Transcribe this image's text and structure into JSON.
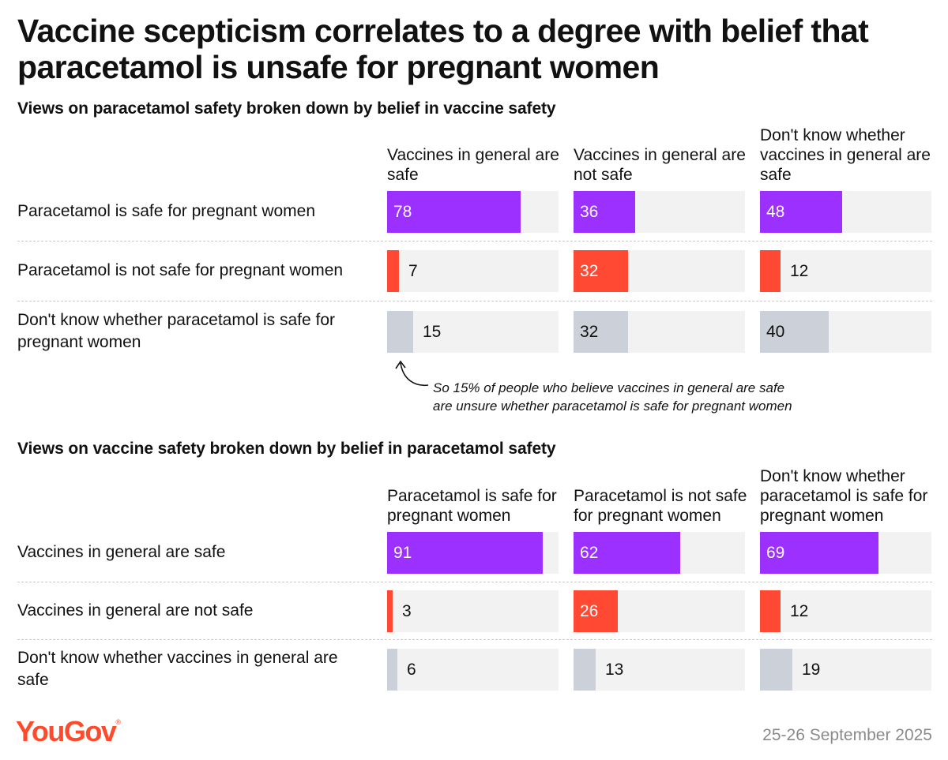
{
  "title": "Vaccine scepticism correlates to a degree with belief that paracetamol is unsafe for pregnant women",
  "colors": {
    "purple": "#9b30ff",
    "red": "#ff4933",
    "grey": "#ccd0d8",
    "track": "#f2f2f2",
    "brand": "#ff4a2b"
  },
  "chart_data": [
    {
      "type": "bar",
      "title": "Views on paracetamol safety broken down by belief in vaccine safety",
      "columns": [
        "Vaccines in general are safe",
        "Vaccines in general are not safe",
        "Don't know whether vaccines in general are safe"
      ],
      "rows": [
        "Paracetamol is safe for pregnant women",
        "Paracetamol is not safe for pregnant women",
        "Don't know whether paracetamol is safe for pregnant women"
      ],
      "values": [
        [
          78,
          36,
          48
        ],
        [
          7,
          32,
          12
        ],
        [
          15,
          32,
          40
        ]
      ],
      "row_colors": [
        "purple",
        "red",
        "grey"
      ],
      "xlim": [
        0,
        100
      ],
      "unit": "%",
      "annotation": "So 15% of people who believe vaccines in general are safe\nare unsure whether paracetamol is safe for pregnant women"
    },
    {
      "type": "bar",
      "title": "Views on vaccine safety broken down by belief in paracetamol safety",
      "columns": [
        "Paracetamol is safe for pregnant women",
        "Paracetamol is not safe for pregnant women",
        "Don't know whether paracetamol is safe for pregnant women"
      ],
      "rows": [
        "Vaccines in general are safe",
        "Vaccines in general are not safe",
        "Don't know whether vaccines in general are safe"
      ],
      "values": [
        [
          91,
          62,
          69
        ],
        [
          3,
          26,
          12
        ],
        [
          6,
          13,
          19
        ]
      ],
      "row_colors": [
        "purple",
        "red",
        "grey"
      ],
      "xlim": [
        0,
        100
      ],
      "unit": "%"
    }
  ],
  "footer": {
    "logo": "YouGov",
    "logo_mark": "®",
    "date": "25-26 September 2025"
  }
}
